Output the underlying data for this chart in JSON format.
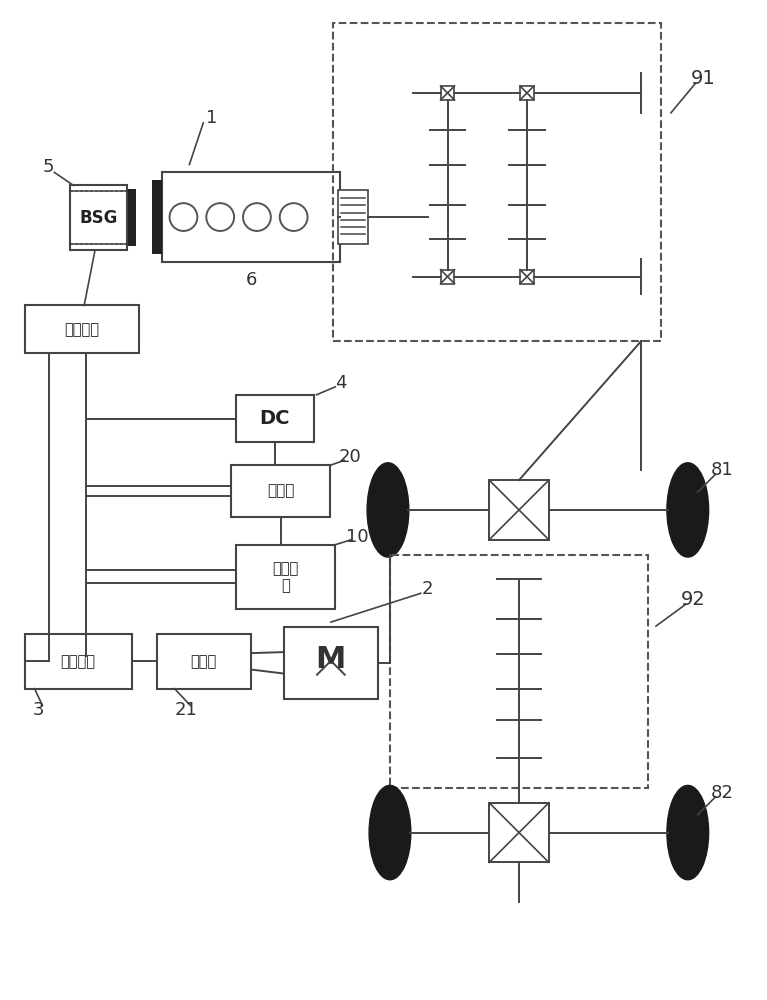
{
  "bg_color": "#ffffff",
  "lc": "#444444",
  "tc": "#1a1a1a",
  "labels": {
    "bsg": "BSG",
    "wendinglv": "稳压电路",
    "dc": "DC",
    "battery": "蓄电池",
    "lowv": "低压电\n器",
    "power_battery": "动力电池",
    "controller": "控制器",
    "motor": "M"
  },
  "nums": {
    "n1": "1",
    "n2": "2",
    "n3": "3",
    "n4": "4",
    "n5": "5",
    "n6": "6",
    "n10": "10",
    "n20": "20",
    "n21": "21",
    "n81": "81",
    "n82": "82",
    "n91": "91",
    "n92": "92"
  }
}
